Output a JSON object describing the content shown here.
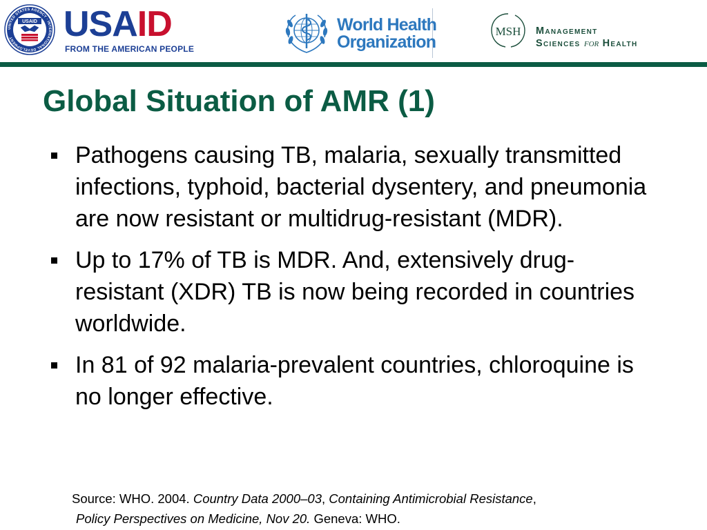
{
  "logos": {
    "usaid": {
      "seal_text": "UNITED STATES AGENCY · INTERNATIONAL DEVELOPMENT",
      "seal_label": "USAID",
      "word_usa": "USA",
      "word_id": "ID",
      "tagline": "FROM THE AMERICAN PEOPLE",
      "colors": {
        "blue": "#1c3f95",
        "red": "#c8102e"
      }
    },
    "who": {
      "line1": "World Health",
      "line2": "Organization",
      "color": "#2d78be"
    },
    "msh": {
      "monogram": "MSH",
      "line1": "Management",
      "line2_a": "Sciences",
      "line2_for": "for",
      "line2_b": "Health",
      "color": "#1c4f3c"
    }
  },
  "theme": {
    "accent": "#0b5c44"
  },
  "slide": {
    "title": "Global Situation of AMR (1)",
    "bullets": [
      {
        "text": "Pathogens causing TB, malaria, sexually transmitted infections, typhoid, bacterial dysentery, and pneumonia are now resistant or multidrug-resistant (MDR)."
      },
      {
        "text": "Up to 17% of TB is MDR. And, extensively drug-resistant (XDR) TB is now being recorded in countries worldwide."
      },
      {
        "text": "In 81 of 92 malaria-prevalent countries, chloroquine is no longer effective."
      }
    ],
    "source": {
      "prefix": "Source: WHO. 2004. ",
      "title1": "Country Data 2000–03",
      "sep1": ", ",
      "title2": "Containing Antimicrobial Resistance",
      "sep2": ",",
      "title3": "Policy Perspectives on Medicine, Nov 20.",
      "suffix": " Geneva: WHO."
    }
  }
}
